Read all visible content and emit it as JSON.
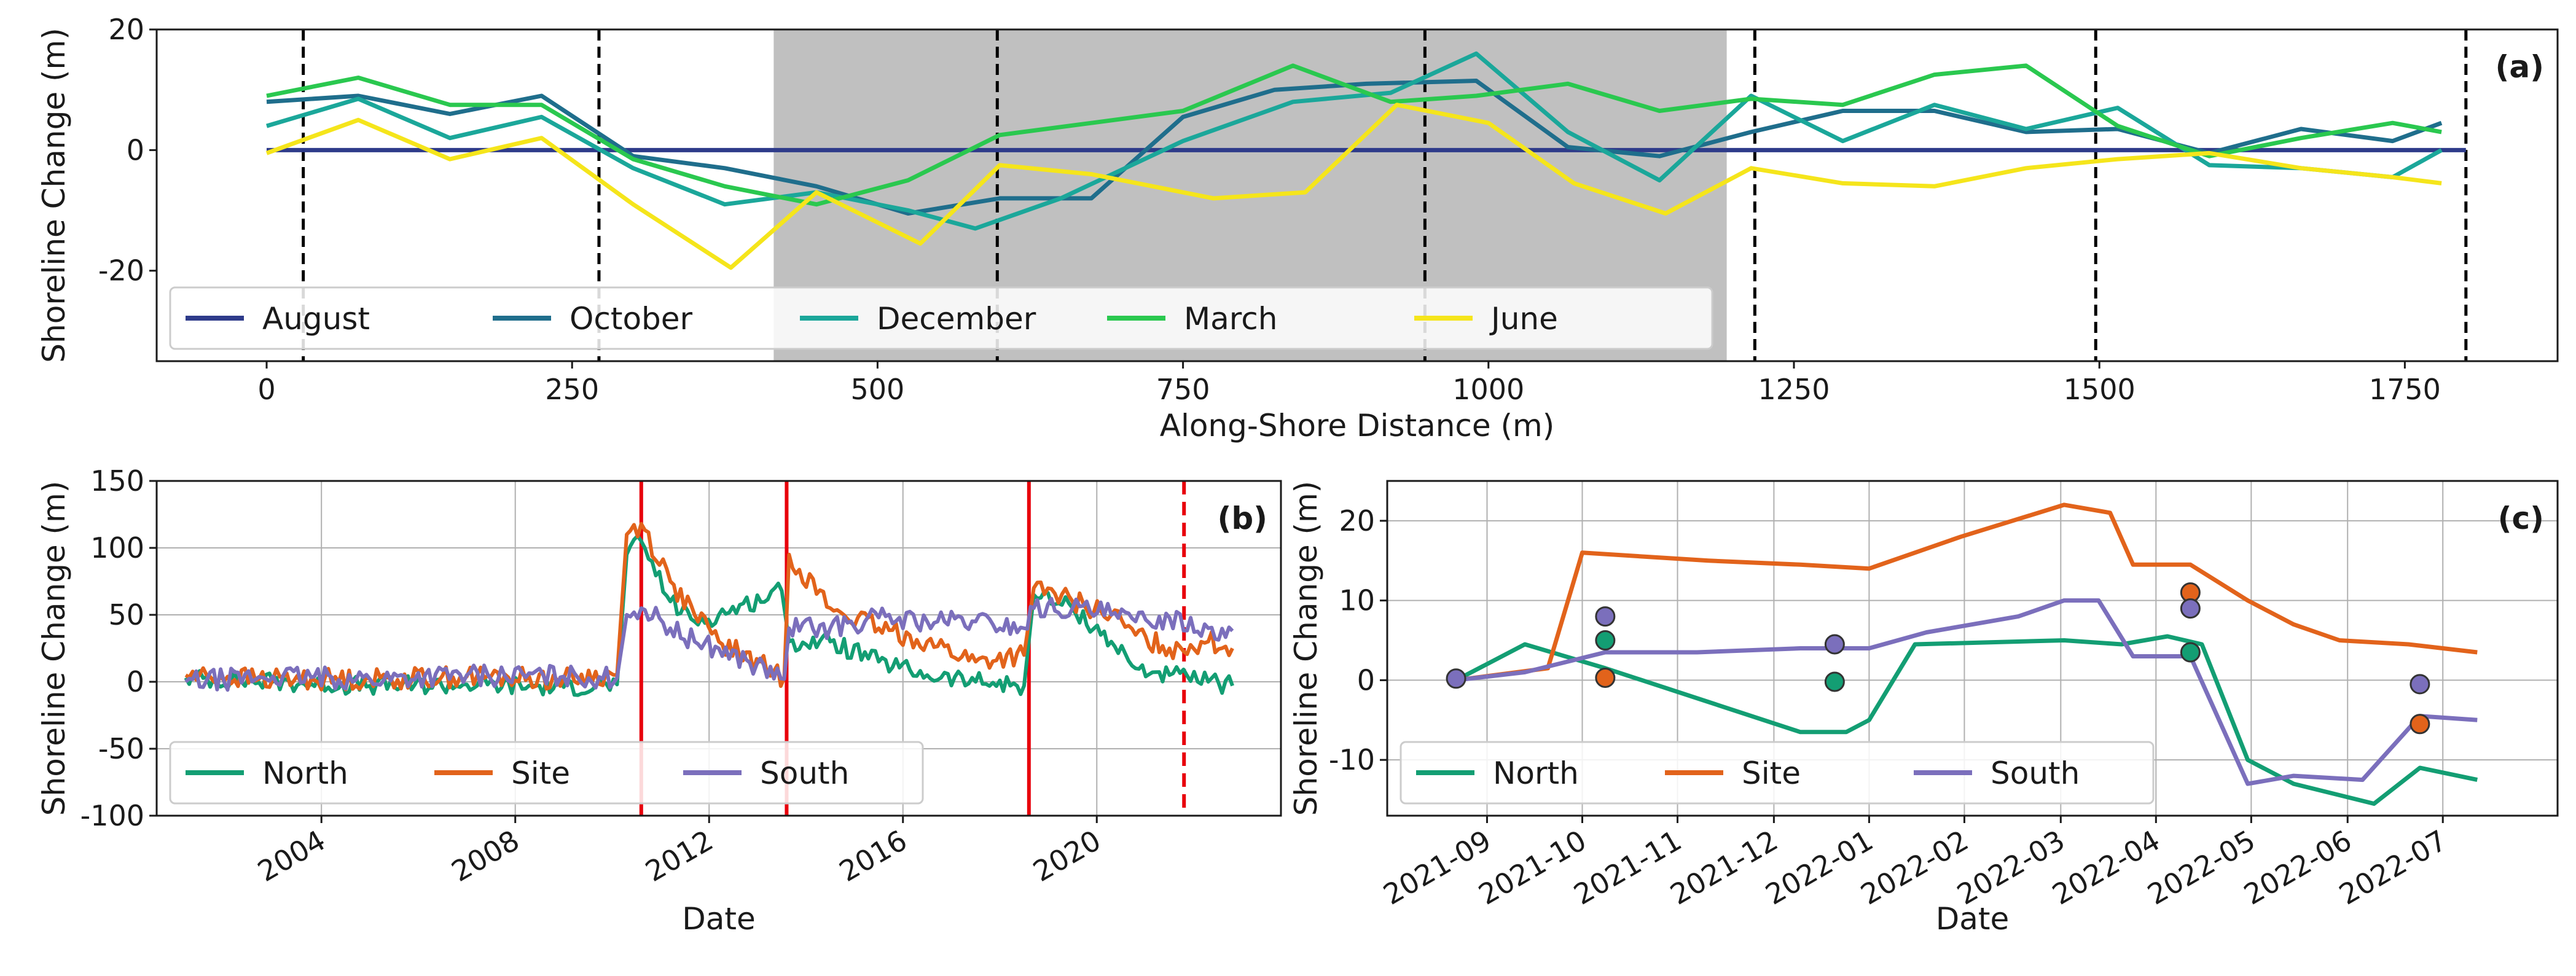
{
  "panels": [
    {
      "id": "a",
      "type": "line",
      "panel_label": "(a)",
      "xlabel": "Along-Shore Distance (m)",
      "ylabel": "Shoreline Change (m)",
      "xlim": [
        -90,
        1875
      ],
      "ylim": [
        -35,
        20
      ],
      "xticks": [
        0,
        250,
        500,
        750,
        1000,
        1250,
        1500,
        1750
      ],
      "yticks": [
        -20,
        0,
        20
      ],
      "grid": false,
      "shaded_region": [
        415,
        1195
      ],
      "shade_color": "#c0c0c0",
      "vlines": [
        {
          "x": 30,
          "style": "dashed",
          "color": "#000000"
        },
        {
          "x": 272,
          "style": "dashed",
          "color": "#000000"
        },
        {
          "x": 598,
          "style": "dashed",
          "color": "#000000"
        },
        {
          "x": 948,
          "style": "dashed",
          "color": "#000000"
        },
        {
          "x": 1218,
          "style": "dashed",
          "color": "#000000"
        },
        {
          "x": 1497,
          "style": "dashed",
          "color": "#000000"
        },
        {
          "x": 1800,
          "style": "dashed",
          "color": "#000000"
        }
      ],
      "legend": {
        "placement": "lower-left",
        "ncol": 5
      },
      "series": [
        {
          "name": "August",
          "color": "#2e3b8a",
          "x": [
            0,
            1800
          ],
          "y": [
            0,
            0
          ]
        },
        {
          "name": "October",
          "color": "#1f6e8c",
          "x": [
            0,
            75,
            150,
            225,
            300,
            375,
            450,
            525,
            600,
            675,
            750,
            825,
            900,
            990,
            1065,
            1140,
            1215,
            1290,
            1365,
            1440,
            1515,
            1590,
            1665,
            1740,
            1780
          ],
          "y": [
            8,
            9,
            6,
            9,
            -1,
            -3,
            -6,
            -10.5,
            -8,
            -8,
            5.5,
            10,
            11,
            11.5,
            0.5,
            -1,
            3,
            6.5,
            6.5,
            3,
            3.5,
            -0.5,
            3.5,
            1.5,
            4.5
          ]
        },
        {
          "name": "December",
          "color": "#1ba79a",
          "x": [
            0,
            75,
            150,
            225,
            300,
            375,
            450,
            525,
            580,
            650,
            750,
            840,
            920,
            990,
            1065,
            1140,
            1215,
            1290,
            1365,
            1440,
            1515,
            1590,
            1665,
            1740,
            1780
          ],
          "y": [
            4,
            8.5,
            2,
            5.5,
            -3,
            -9,
            -7,
            -10,
            -13,
            -8,
            1.5,
            8,
            9.5,
            16,
            3,
            -5,
            9,
            1.5,
            7.5,
            3.5,
            7,
            -2.5,
            -3,
            -4.5,
            0
          ]
        },
        {
          "name": "March",
          "color": "#2ac84f",
          "x": [
            0,
            75,
            150,
            225,
            300,
            375,
            450,
            525,
            600,
            675,
            750,
            840,
            920,
            990,
            1065,
            1140,
            1215,
            1290,
            1365,
            1440,
            1515,
            1590,
            1665,
            1740,
            1780
          ],
          "y": [
            9,
            12,
            7.5,
            7.5,
            -1.5,
            -6,
            -9,
            -5,
            2.5,
            4.5,
            6.5,
            14,
            8,
            9,
            11,
            6.5,
            8.5,
            7.5,
            12.5,
            14,
            4,
            -1,
            2,
            4.5,
            3
          ]
        },
        {
          "name": "June",
          "color": "#f5e51b",
          "x": [
            0,
            75,
            150,
            225,
            300,
            380,
            450,
            535,
            600,
            675,
            775,
            850,
            925,
            1000,
            1070,
            1145,
            1215,
            1290,
            1365,
            1440,
            1515,
            1590,
            1665,
            1740,
            1780
          ],
          "y": [
            -0.5,
            5,
            -1.5,
            2,
            -9,
            -19.5,
            -7,
            -15.5,
            -2.5,
            -4,
            -8,
            -7,
            7.5,
            4.5,
            -5.5,
            -10.5,
            -3,
            -5.5,
            -6,
            -3,
            -1.5,
            -0.5,
            -3,
            -4.5,
            -5.5
          ]
        }
      ]
    },
    {
      "id": "b",
      "type": "line",
      "panel_label": "(b)",
      "xlabel": "Date",
      "ylabel": "Shoreline Change (m)",
      "xlim": [
        2000.6,
        2023.8
      ],
      "ylim": [
        -100,
        150
      ],
      "xticks": [
        2004,
        2008,
        2012,
        2016,
        2020
      ],
      "xtick_labels": [
        "2004",
        "2008",
        "2012",
        "2016",
        "2020"
      ],
      "yticks": [
        -100,
        -50,
        0,
        50,
        100,
        150
      ],
      "grid": true,
      "vlines": [
        {
          "x": 2010.6,
          "style": "solid",
          "color": "#e8000b"
        },
        {
          "x": 2013.6,
          "style": "solid",
          "color": "#e8000b"
        },
        {
          "x": 2018.6,
          "style": "solid",
          "color": "#e8000b"
        },
        {
          "x": 2021.8,
          "style": "dashed",
          "color": "#e8000b"
        }
      ],
      "legend": {
        "placement": "lower-left",
        "ncol": 3
      },
      "series": [
        {
          "name": "North",
          "color": "#139e73",
          "noise": 7,
          "x": [
            2001.2,
            2003,
            2005,
            2007,
            2009,
            2010.1,
            2010.3,
            2010.6,
            2011.2,
            2011.7,
            2012.2,
            2013.5,
            2013.65,
            2014.5,
            2015.5,
            2016.5,
            2017.5,
            2018.5,
            2018.7,
            2019.5,
            2020.3,
            2020.8,
            2021.5,
            2022.3,
            2022.8
          ],
          "y": [
            3,
            0,
            -3,
            -2,
            -4,
            -2,
            95,
            105,
            60,
            45,
            50,
            68,
            30,
            30,
            15,
            5,
            0,
            -3,
            65,
            55,
            30,
            10,
            5,
            0,
            -3
          ]
        },
        {
          "name": "Site",
          "color": "#e2631b",
          "noise": 8,
          "x": [
            2001.2,
            2003,
            2005,
            2007,
            2009,
            2010.1,
            2010.3,
            2010.6,
            2011.2,
            2011.7,
            2012.2,
            2013.55,
            2013.65,
            2014.5,
            2015.5,
            2016.5,
            2017.5,
            2018.5,
            2018.7,
            2019.5,
            2020.3,
            2020.8,
            2021.5,
            2022.3,
            2022.8
          ],
          "y": [
            5,
            2,
            2,
            4,
            2,
            5,
            110,
            118,
            75,
            50,
            30,
            3,
            95,
            55,
            40,
            30,
            15,
            20,
            70,
            60,
            50,
            35,
            25,
            30,
            25
          ]
        },
        {
          "name": "South",
          "color": "#7b6fbc",
          "noise": 8,
          "x": [
            2001.2,
            2003,
            2005,
            2007,
            2009,
            2010.1,
            2010.3,
            2010.6,
            2011.2,
            2011.7,
            2012.2,
            2013.55,
            2013.65,
            2014.5,
            2015.5,
            2016.5,
            2017.5,
            2018.5,
            2018.7,
            2019.5,
            2020.3,
            2020.8,
            2021.5,
            2022.3,
            2022.8
          ],
          "y": [
            0,
            4,
            2,
            5,
            4,
            3,
            50,
            55,
            40,
            30,
            25,
            2,
            40,
            40,
            48,
            45,
            45,
            40,
            55,
            55,
            50,
            45,
            48,
            40,
            38
          ]
        }
      ]
    },
    {
      "id": "c",
      "type": "line",
      "panel_label": "(c)",
      "xlabel": "Date",
      "ylabel": "Shoreline Change (m)",
      "xlim": [
        2021.58,
        2022.6
      ],
      "ylim": [
        -17,
        25
      ],
      "xticks": [
        2021.667,
        2021.75,
        2021.833,
        2021.917,
        2022.0,
        2022.083,
        2022.167,
        2022.25,
        2022.333,
        2022.417,
        2022.5
      ],
      "xtick_labels": [
        "2021-09",
        "2021-10",
        "2021-11",
        "2021-12",
        "2022-01",
        "2022-02",
        "2022-03",
        "2022-04",
        "2022-05",
        "2022-06",
        "2022-07"
      ],
      "yticks": [
        -10,
        0,
        10,
        20
      ],
      "grid": true,
      "legend": {
        "placement": "lower-left",
        "ncol": 3
      },
      "series": [
        {
          "name": "North",
          "color": "#139e73",
          "x": [
            2021.64,
            2021.7,
            2021.77,
            2021.94,
            2021.98,
            2022.0,
            2022.04,
            2022.17,
            2022.22,
            2022.26,
            2022.29,
            2022.33,
            2022.37,
            2022.44,
            2022.48,
            2022.53
          ],
          "y": [
            0,
            4.5,
            1.5,
            -6.5,
            -6.5,
            -5,
            4.5,
            5,
            4.5,
            5.5,
            4.5,
            -10,
            -13,
            -15.5,
            -11,
            -12.5
          ]
        },
        {
          "name": "Site",
          "color": "#e2631b",
          "x": [
            2021.64,
            2021.72,
            2021.75,
            2021.86,
            2021.94,
            2022.0,
            2022.08,
            2022.17,
            2022.21,
            2022.23,
            2022.28,
            2022.33,
            2022.37,
            2022.41,
            2022.47,
            2022.53
          ],
          "y": [
            0,
            1.5,
            16,
            15,
            14.5,
            14,
            18,
            22,
            21,
            14.5,
            14.5,
            10,
            7,
            5,
            4.5,
            3.5
          ]
        },
        {
          "name": "South",
          "color": "#7b6fbc",
          "x": [
            2021.64,
            2021.7,
            2021.77,
            2021.85,
            2021.94,
            2022.0,
            2022.05,
            2022.13,
            2022.17,
            2022.2,
            2022.23,
            2022.28,
            2022.33,
            2022.37,
            2022.43,
            2022.48,
            2022.53
          ],
          "y": [
            0,
            1,
            3.5,
            3.5,
            4,
            4,
            6,
            8,
            10,
            10,
            3,
            3,
            -13,
            -12,
            -12.5,
            -4.5,
            -5
          ]
        }
      ],
      "scatter": [
        {
          "x": 2021.64,
          "y": 0.2,
          "color": "#7b6fbc"
        },
        {
          "x": 2021.77,
          "y": 8,
          "color": "#7b6fbc"
        },
        {
          "x": 2021.77,
          "y": 5,
          "color": "#139e73"
        },
        {
          "x": 2021.77,
          "y": 0.3,
          "color": "#e2631b"
        },
        {
          "x": 2021.97,
          "y": 4.5,
          "color": "#7b6fbc"
        },
        {
          "x": 2021.97,
          "y": -0.2,
          "color": "#139e73"
        },
        {
          "x": 2022.28,
          "y": 11,
          "color": "#e2631b"
        },
        {
          "x": 2022.28,
          "y": 9,
          "color": "#7b6fbc"
        },
        {
          "x": 2022.28,
          "y": 3.5,
          "color": "#139e73"
        },
        {
          "x": 2022.48,
          "y": -0.5,
          "color": "#7b6fbc"
        },
        {
          "x": 2022.48,
          "y": -5.5,
          "color": "#e2631b"
        }
      ]
    }
  ]
}
